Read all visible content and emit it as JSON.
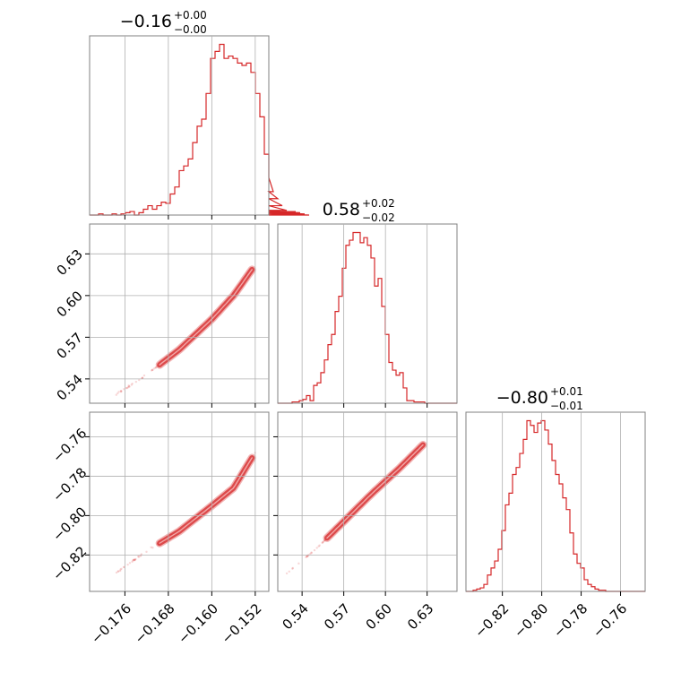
{
  "chart_data": {
    "type": "corner",
    "color": "#d62728",
    "parameters": [
      {
        "title": "−0.16",
        "title_plus": "+0.00",
        "title_minus": "−0.00",
        "range": [
          -0.1825,
          -0.1495
        ],
        "ticks": [
          -0.176,
          -0.168,
          -0.16,
          -0.152
        ],
        "tick_labels": [
          "−0.176",
          "−0.168",
          "−0.160",
          "−0.152"
        ]
      },
      {
        "title": "0.58",
        "title_plus": "+0.02",
        "title_minus": "−0.02",
        "range": [
          0.5225,
          0.6515
        ],
        "ticks": [
          0.54,
          0.57,
          0.6,
          0.63
        ],
        "tick_labels": [
          "0.54",
          "0.57",
          "0.60",
          "0.63"
        ]
      },
      {
        "title": "−0.80",
        "title_plus": "+0.01",
        "title_minus": "−0.01",
        "range": [
          -0.8385,
          -0.7475
        ],
        "ticks": [
          -0.82,
          -0.8,
          -0.78,
          -0.76
        ],
        "tick_labels": [
          "−0.82",
          "−0.80",
          "−0.78",
          "−0.76"
        ]
      }
    ],
    "histograms": [
      {
        "bin_start": -0.1825,
        "bin_width": 0.000825,
        "counts": [
          0,
          0,
          0.5,
          0,
          0,
          0.5,
          0,
          0.5,
          1,
          1.5,
          0,
          1,
          2.5,
          4,
          2.5,
          4,
          5.5,
          5,
          9,
          12,
          19,
          21,
          24,
          31,
          38,
          41,
          52,
          67,
          70,
          73,
          67,
          68,
          67,
          65,
          64,
          65,
          61,
          52,
          42,
          26,
          16,
          10,
          7,
          4,
          2,
          1,
          1.5,
          1,
          0.5,
          0
        ]
      },
      {
        "bin_start": 0.5225,
        "bin_width": 0.00258,
        "counts": [
          0,
          0,
          0,
          0,
          0.5,
          0.5,
          1,
          1.5,
          3,
          1,
          7,
          8,
          12,
          17,
          23,
          27,
          36,
          42,
          53,
          62,
          64,
          67,
          67,
          63,
          65,
          62,
          57,
          46,
          49,
          38,
          27,
          16,
          13,
          11,
          12,
          6,
          1,
          1,
          0.5,
          0.5,
          0.5,
          0,
          0,
          0,
          0,
          0,
          0,
          0,
          0,
          0
        ]
      },
      {
        "bin_start": -0.8385,
        "bin_width": 0.00182,
        "counts": [
          0,
          0,
          0.5,
          1,
          1.5,
          3,
          7,
          10,
          13,
          18,
          26,
          37,
          42,
          50,
          53,
          59,
          65,
          73,
          71,
          68,
          72,
          73,
          69,
          63,
          56,
          50,
          46,
          40,
          35,
          25,
          16,
          12,
          10,
          5,
          3,
          2,
          1,
          0.5,
          0.5,
          0,
          0,
          0,
          0,
          0,
          0,
          0,
          0,
          0,
          0,
          0
        ]
      }
    ],
    "pairs": [
      {
        "x_param": 0,
        "y_param": 1,
        "curve_x": [
          -0.178,
          -0.172,
          -0.166,
          -0.16,
          -0.156,
          -0.152
        ],
        "curve_y": [
          0.528,
          0.543,
          0.561,
          0.583,
          0.6,
          0.622
        ]
      },
      {
        "x_param": 0,
        "y_param": 2,
        "curve_x": [
          -0.178,
          -0.172,
          -0.166,
          -0.16,
          -0.156,
          -0.152
        ],
        "curve_y": [
          -0.83,
          -0.818,
          -0.808,
          -0.795,
          -0.786,
          -0.768
        ]
      },
      {
        "x_param": 1,
        "y_param": 2,
        "curve_x": [
          0.528,
          0.55,
          0.57,
          0.59,
          0.61,
          0.63
        ],
        "curve_y": [
          -0.83,
          -0.817,
          -0.803,
          -0.789,
          -0.776,
          -0.762
        ]
      }
    ]
  }
}
